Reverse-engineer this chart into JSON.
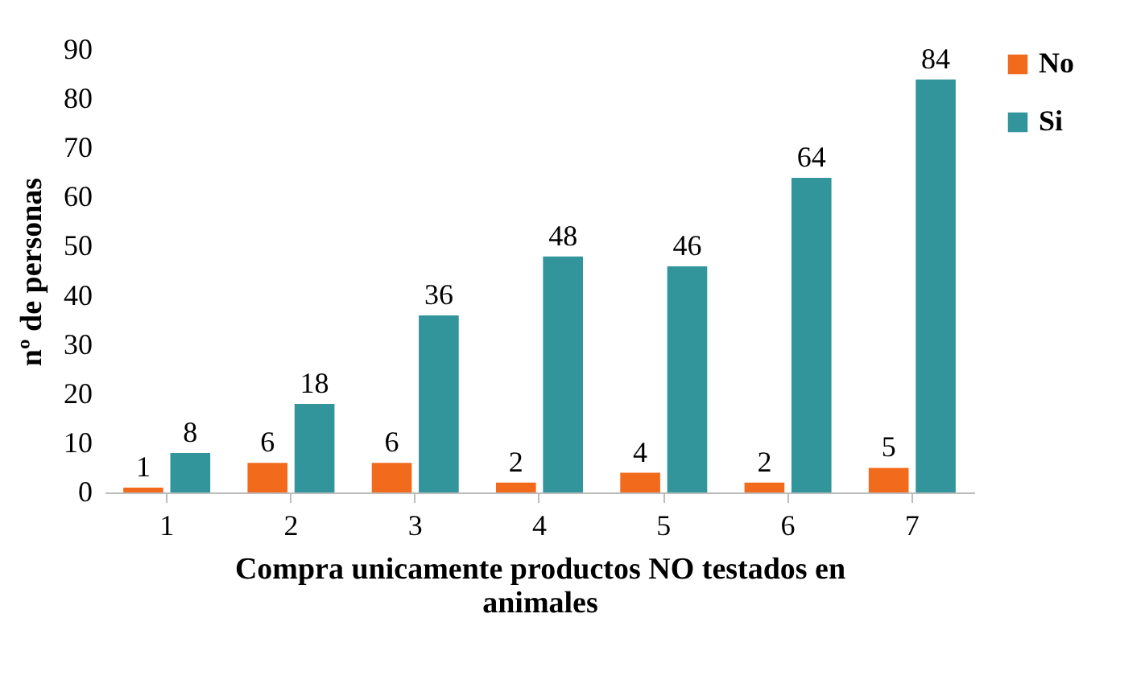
{
  "chart_data": {
    "type": "bar",
    "xlabel": "Compra unicamente productos NO testados en animales",
    "ylabel": "nº de personas",
    "categories": [
      "1",
      "2",
      "3",
      "4",
      "5",
      "6",
      "7"
    ],
    "series": [
      {
        "name": "No",
        "color": "#f26b1d",
        "values": [
          1,
          6,
          6,
          2,
          4,
          2,
          5
        ]
      },
      {
        "name": "Si",
        "color": "#31959b",
        "values": [
          8,
          18,
          36,
          48,
          46,
          64,
          84
        ]
      }
    ],
    "ylim": [
      0,
      90
    ],
    "yticks": [
      0,
      10,
      20,
      30,
      40,
      50,
      60,
      70,
      80,
      90
    ],
    "data_labels": true,
    "grid": false,
    "legend": "right"
  }
}
